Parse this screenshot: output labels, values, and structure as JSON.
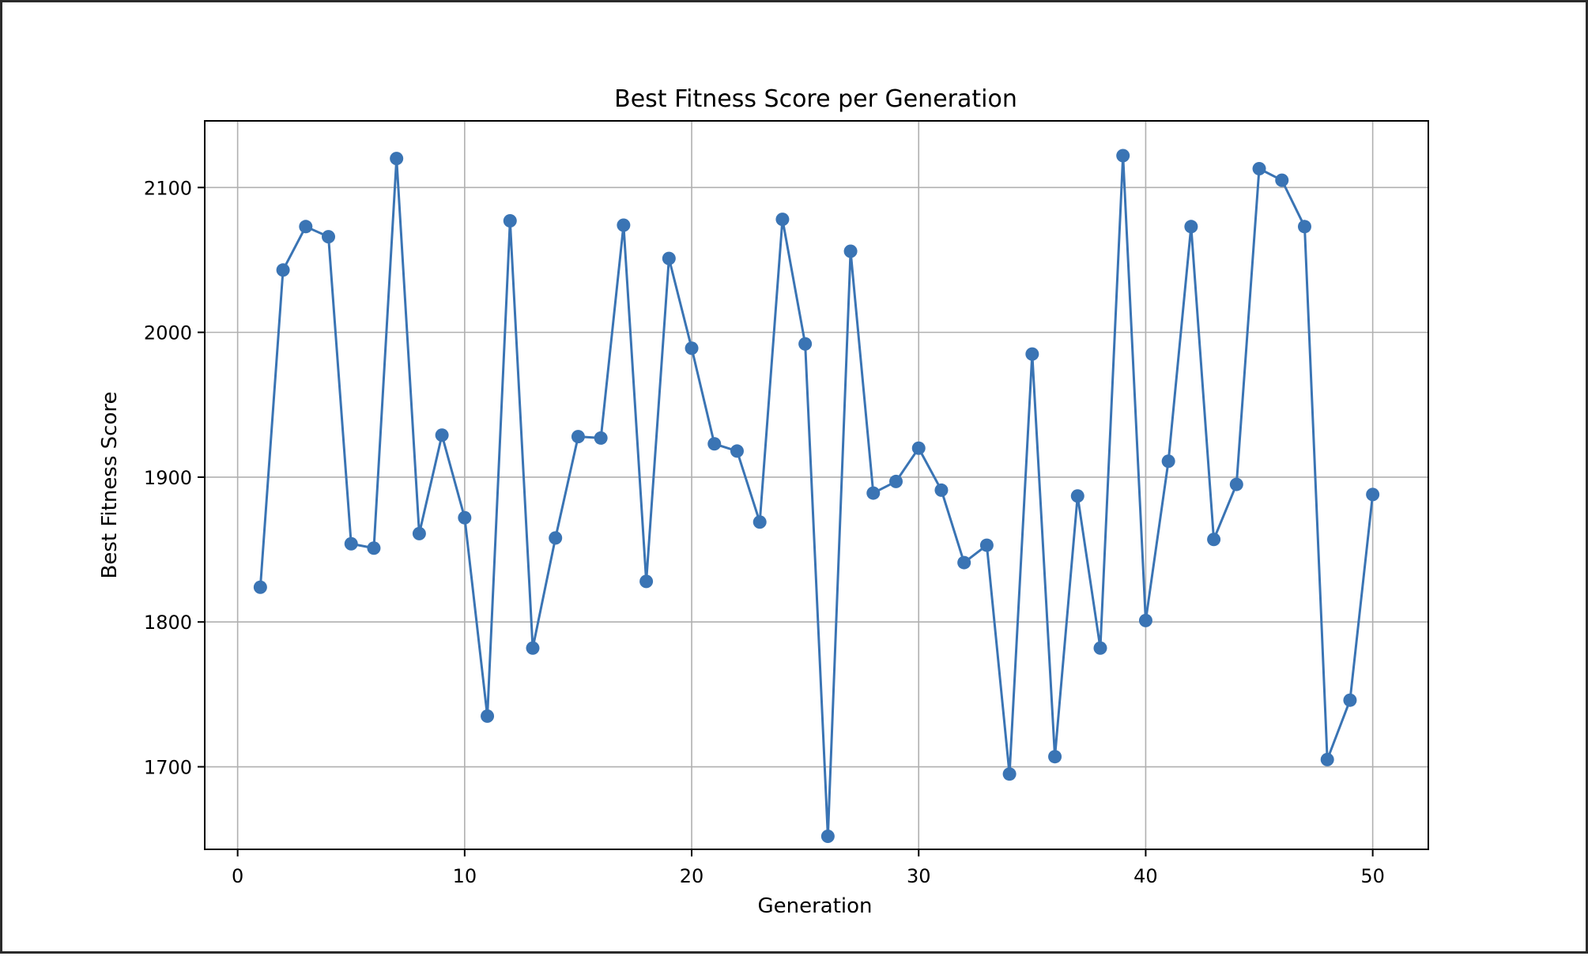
{
  "chart_data": {
    "type": "line",
    "title": "Best Fitness Score per Generation",
    "xlabel": "Generation",
    "ylabel": "Best Fitness Score",
    "xlim": [
      -1.45,
      52.45
    ],
    "ylim": [
      1643,
      2146
    ],
    "xticks": [
      0,
      10,
      20,
      30,
      40,
      50
    ],
    "yticks": [
      1700,
      1800,
      1900,
      2000,
      2100
    ],
    "grid": true,
    "legend": "none",
    "line_color": "#3a74b4",
    "marker": "circle",
    "series": [
      {
        "x": [
          1,
          2,
          3,
          4,
          5,
          6,
          7,
          8,
          9,
          10,
          11,
          12,
          13,
          14,
          15,
          16,
          17,
          18,
          19,
          20,
          21,
          22,
          23,
          24,
          25,
          26,
          27,
          28,
          29,
          30,
          31,
          32,
          33,
          34,
          35,
          36,
          37,
          38,
          39,
          40,
          41,
          42,
          43,
          44,
          45,
          46,
          47,
          48,
          49,
          50
        ],
        "values": [
          1824,
          2043,
          2073,
          2066,
          1854,
          1851,
          2120,
          1861,
          1929,
          1872,
          1735,
          2077,
          1782,
          1858,
          1928,
          1927,
          2074,
          1828,
          2051,
          1989,
          1923,
          1918,
          1869,
          2078,
          1992,
          1652,
          2056,
          1889,
          1897,
          1920,
          1891,
          1841,
          1853,
          1695,
          1985,
          1707,
          1887,
          1782,
          2122,
          1801,
          1911,
          2073,
          1857,
          1895,
          2113,
          2105,
          2073,
          1705,
          1746,
          1888
        ]
      }
    ]
  }
}
